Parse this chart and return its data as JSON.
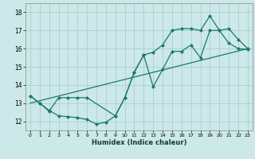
{
  "xlabel": "Humidex (Indice chaleur)",
  "background_color": "#cce8e8",
  "grid_color": "#aacfcf",
  "line_color": "#1a7870",
  "xlim": [
    -0.5,
    23.5
  ],
  "ylim": [
    11.5,
    18.5
  ],
  "xticks": [
    0,
    1,
    2,
    3,
    4,
    5,
    6,
    7,
    8,
    9,
    10,
    11,
    12,
    13,
    14,
    15,
    16,
    17,
    18,
    19,
    20,
    21,
    22,
    23
  ],
  "yticks": [
    12,
    13,
    14,
    15,
    16,
    17,
    18
  ],
  "line1_x": [
    0,
    1,
    2,
    3,
    4,
    5,
    6,
    7,
    8,
    9,
    10,
    11,
    12,
    13,
    14,
    15,
    16,
    17,
    18,
    19,
    20,
    21,
    22,
    23
  ],
  "line1_y": [
    13.4,
    13.0,
    12.6,
    12.3,
    12.25,
    12.2,
    12.1,
    11.85,
    11.95,
    12.3,
    13.3,
    14.7,
    15.65,
    13.9,
    14.85,
    15.85,
    15.85,
    16.2,
    15.5,
    17.0,
    17.0,
    16.3,
    16.0,
    15.95
  ],
  "line2_x": [
    0,
    23
  ],
  "line2_y": [
    13.0,
    16.0
  ],
  "line3_x": [
    0,
    1,
    2,
    3,
    4,
    5,
    6,
    9,
    10,
    11,
    12,
    13,
    14,
    15,
    16,
    17,
    18,
    19,
    20,
    21,
    22,
    23
  ],
  "line3_y": [
    13.4,
    13.0,
    12.55,
    13.3,
    13.3,
    13.3,
    13.3,
    12.3,
    13.3,
    14.7,
    15.65,
    15.8,
    16.2,
    17.0,
    17.1,
    17.1,
    17.0,
    17.8,
    17.0,
    17.1,
    16.5,
    16.0
  ]
}
